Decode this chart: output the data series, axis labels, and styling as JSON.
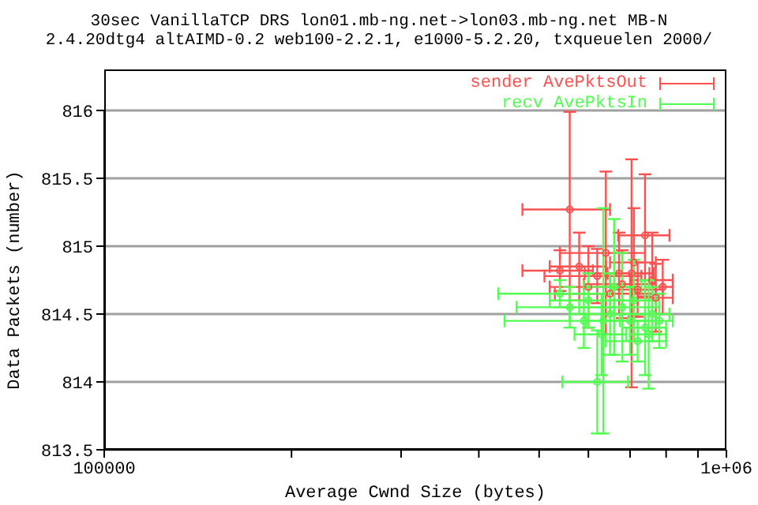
{
  "chart_data": {
    "type": "scatter",
    "title": "30sec VanillaTCP DRS lon01.mb-ng.net->lon03.mb-ng.net MB-N",
    "subtitle": "2.4.20dtg4 altAIMD-0.2 web100-2.2.1, e1000-5.2.20, txqueuelen 2000/",
    "xlabel": "Average Cwnd Size (bytes)",
    "ylabel": "Data Packets (number)",
    "log": "x",
    "xlim": [
      100000,
      1000000
    ],
    "xticks": [
      100000,
      {
        "value": 200000,
        "label": null
      },
      {
        "value": 300000,
        "label": null
      },
      {
        "value": 400000,
        "label": null
      },
      {
        "value": 500000,
        "label": null
      },
      {
        "value": 600000,
        "label": null
      },
      {
        "value": 700000,
        "label": null
      },
      {
        "value": 800000,
        "label": null
      },
      {
        "value": 900000,
        "label": null
      },
      {
        "value": 1000000,
        "label": "1e+06"
      }
    ],
    "ylim": [
      813.5,
      816
    ],
    "yticks": [
      813.5,
      814,
      814.5,
      815,
      815.5,
      816
    ],
    "grid": "y",
    "legend": "top right",
    "marker": "circle",
    "series": [
      {
        "name": "sender AvePktsOut",
        "color": "#ff5050",
        "x": [
          560000,
          704000,
          740000,
          580000,
          640000,
          672000,
          620000,
          760000,
          680000,
          720000,
          790000,
          650000,
          600000,
          770000,
          540000,
          710000
        ],
        "values": [
          815.27,
          814.8,
          815.08,
          814.85,
          814.95,
          814.8,
          814.78,
          814.75,
          814.72,
          814.68,
          814.7,
          814.65,
          814.7,
          814.62,
          814.82,
          814.88
        ],
        "errors": [
          0.72,
          0.84,
          0.45,
          0.25,
          0.6,
          0.3,
          0.2,
          0.35,
          0.25,
          0.2,
          0.2,
          0.15,
          0.3,
          0.25,
          0.15,
          0.4
        ],
        "xerrors": [
          90000,
          60000,
          70000,
          60000,
          100000,
          80000,
          110000,
          60000,
          90000,
          70000,
          30000,
          120000,
          80000,
          50000,
          70000,
          60000
        ]
      },
      {
        "name": "recv AvePktsIn",
        "color": "#50ff50",
        "x": [
          634000,
          620000,
          560000,
          600000,
          650000,
          700000,
          740000,
          760000,
          680000,
          720000,
          780000,
          540000,
          630000,
          710000,
          750000,
          590000,
          660000
        ],
        "values": [
          814.45,
          814.0,
          814.55,
          814.6,
          814.5,
          814.45,
          814.4,
          814.5,
          814.55,
          814.3,
          814.45,
          814.65,
          814.35,
          814.6,
          814.35,
          814.45,
          814.7
        ],
        "errors": [
          0.83,
          0.38,
          0.15,
          0.2,
          0.3,
          0.25,
          0.35,
          0.2,
          0.4,
          0.15,
          0.2,
          0.1,
          0.3,
          0.3,
          0.4,
          0.2,
          0.5
        ],
        "xerrors": [
          40000,
          75000,
          100000,
          80000,
          90000,
          70000,
          60000,
          50000,
          100000,
          80000,
          40000,
          110000,
          60000,
          60000,
          50000,
          150000,
          70000
        ]
      }
    ]
  }
}
